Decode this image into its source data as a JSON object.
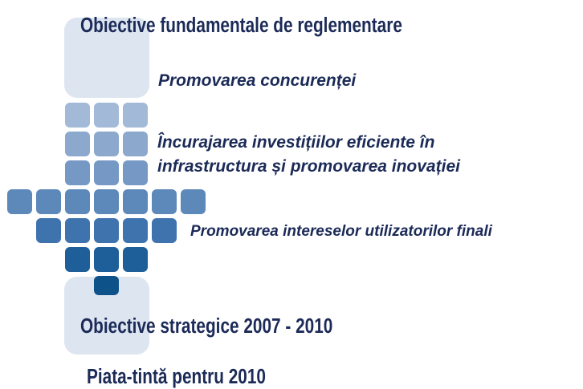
{
  "headings": {
    "top": "Obiective fundamentale de reglementare",
    "strategic": "Obiective strategice 2007 - 2010",
    "target": "Piata-tintă pentru 2010"
  },
  "objectives": [
    "Promovarea concurenței",
    "Încurajarea investițiilor eficiente în",
    "infrastructura și promovarea inovației",
    "Promovarea intereselor utilizatorilor finali"
  ]
}
